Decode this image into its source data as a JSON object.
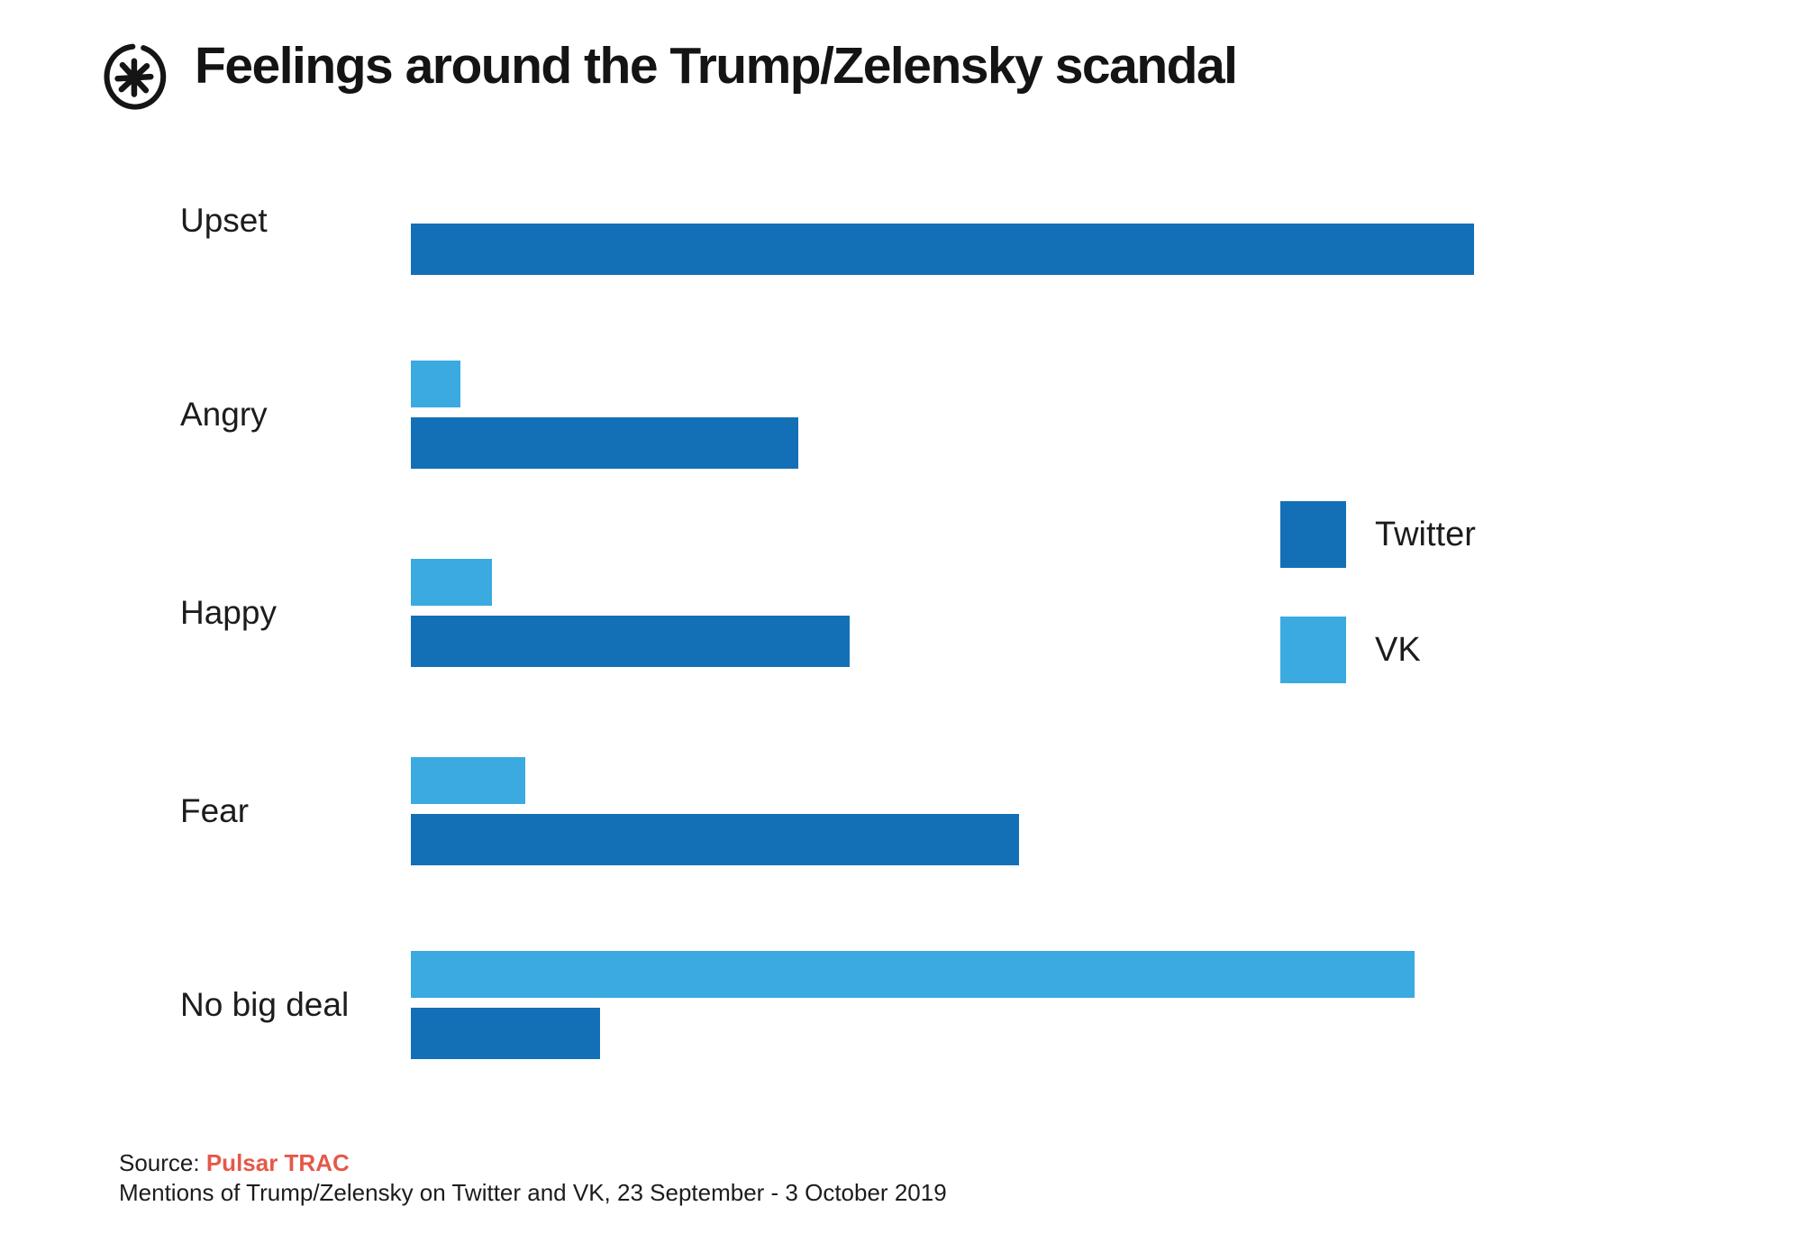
{
  "header": {
    "title": "Feelings around the Trump/Zelensky scandal",
    "logo": "pulsar-asterisk-logo"
  },
  "legend": [
    {
      "label": "Twitter",
      "color": "#1470B6"
    },
    {
      "label": "VK",
      "color": "#3AAAE1"
    }
  ],
  "footer": {
    "source_label": "Source:",
    "source_name": "Pulsar TRAC",
    "source_name_color": "#E5584A",
    "subtitle": "Mentions of Trump/Zelensky on Twitter and VK, 23 September - 3  October 2019"
  },
  "chart_data": {
    "type": "bar",
    "orientation": "horizontal",
    "title": "Feelings around the Trump/Zelensky scandal",
    "categories": [
      "Upset",
      "Angry",
      "Happy",
      "Fear",
      "No big deal"
    ],
    "series": [
      {
        "name": "Twitter",
        "color": "#1470B6",
        "values": [
          100,
          36.4,
          41.3,
          57.2,
          17.8
        ]
      },
      {
        "name": "VK",
        "color": "#3AAAE1",
        "values": [
          0,
          4.7,
          7.6,
          10.8,
          94.4
        ]
      }
    ],
    "units": "relative bar length, % of longest bar (Upset/Twitter = 100); no numeric axis or value labels shown",
    "xlabel": "",
    "ylabel": "",
    "grid": false,
    "axis_shown": false,
    "legend_position": "right"
  }
}
